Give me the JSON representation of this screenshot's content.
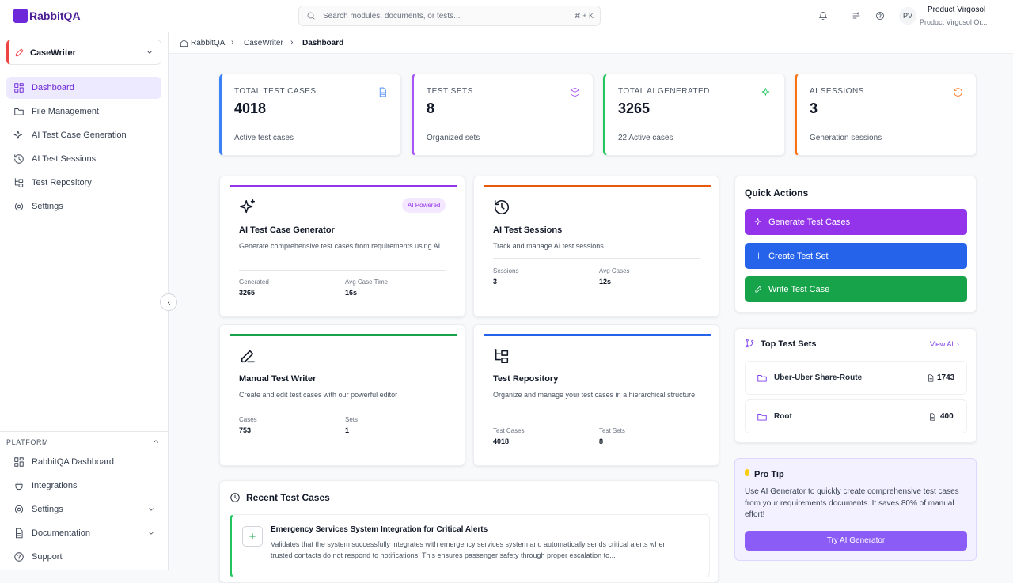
{
  "header": {
    "logo": "RabbitQA",
    "search_placeholder": "Search modules, documents, or tests...",
    "shortcut": "⌘ + K",
    "user_initials": "PV",
    "user_name": "Product Virgosol",
    "user_org": "Product Virgosol Or..."
  },
  "sidebar": {
    "workspace": "CaseWriter",
    "nav": [
      "Dashboard",
      "File Management",
      "AI Test Case Generation",
      "AI Test Sessions",
      "Test Repository",
      "Settings"
    ],
    "platform_title": "PLATFORM",
    "platform_nav": [
      "RabbitQA Dashboard",
      "Integrations",
      "Settings",
      "Documentation",
      "Support"
    ]
  },
  "breadcrumb": [
    "RabbitQA",
    "CaseWriter",
    "Dashboard"
  ],
  "stats": [
    {
      "label": "TOTAL TEST CASES",
      "value": 4018,
      "note": "Active test cases"
    },
    {
      "label": "TEST SETS",
      "value": 8,
      "note": "Organized sets"
    },
    {
      "label": "TOTAL AI GENERATED",
      "value": 3265,
      "note": "22 Active cases"
    },
    {
      "label": "AI SESSIONS",
      "value": 3,
      "note": "Generation sessions"
    }
  ],
  "modules": [
    {
      "title": "AI Test Case Generator",
      "badge": "AI Powered",
      "description": "Generate comprehensive test cases from requirements using AI",
      "stats": [
        {
          "label": "Generated",
          "value": 3265
        },
        {
          "label": "Avg Case Time",
          "value": "16s"
        }
      ]
    },
    {
      "title": "AI Test Sessions",
      "description": "Track and manage AI test sessions",
      "stats": [
        {
          "label": "Sessions",
          "value": 3
        },
        {
          "label": "Avg Cases",
          "value": "12s"
        }
      ]
    },
    {
      "title": "Manual Test Writer",
      "description": "Create and edit test cases with our powerful editor",
      "stats": [
        {
          "label": "Cases",
          "value": 753
        },
        {
          "label": "Sets",
          "value": 1
        }
      ]
    },
    {
      "title": "Test Repository",
      "description": "Organize and manage your test cases in a hierarchical structure",
      "stats": [
        {
          "label": "Test Cases",
          "value": 4018
        },
        {
          "label": "Test Sets",
          "value": 8
        }
      ]
    }
  ],
  "quick_actions": {
    "title": "Quick Actions",
    "buttons": [
      "Generate Test Cases",
      "Create Test Set",
      "Write Test Case"
    ]
  },
  "top_test_sets": {
    "title": "Top Test Sets",
    "link": "View All",
    "items": [
      {
        "name": "Uber-Uber Share-Route",
        "count": 1743
      },
      {
        "name": "Root",
        "count": 400
      }
    ]
  },
  "pro_tip": {
    "title": "Pro Tip",
    "text": "Use AI Generator to quickly create comprehensive test cases from your requirements documents. It saves 80% of manual effort!",
    "button": "Try AI Generator"
  },
  "recent": {
    "title": "Recent Test Cases",
    "items": [
      {
        "title": "Emergency Services System Integration for Critical Alerts",
        "description": "Validates that the system successfully integrates with emergency services system and automatically sends critical alerts when trusted contacts do not respond to notifications. This ensures passenger safety through proper escalation to..."
      }
    ]
  }
}
